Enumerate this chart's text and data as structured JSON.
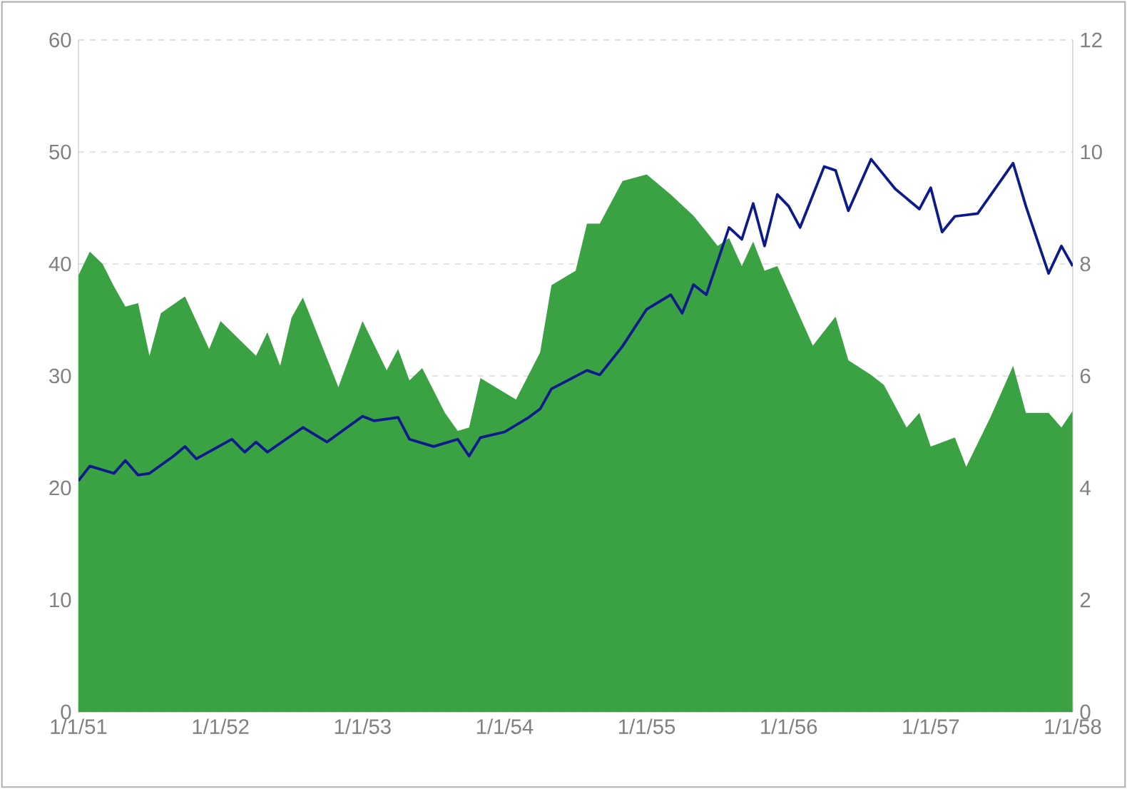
{
  "chart_data": {
    "type": "area",
    "xlim": [
      "1951-01-01",
      "1958-01-01"
    ],
    "xticks": [
      {
        "value": "1951-01-01",
        "label": "1/1/51"
      },
      {
        "value": "1952-01-01",
        "label": "1/1/52"
      },
      {
        "value": "1953-01-01",
        "label": "1/1/53"
      },
      {
        "value": "1954-01-01",
        "label": "1/1/54"
      },
      {
        "value": "1955-01-01",
        "label": "1/1/55"
      },
      {
        "value": "1956-01-01",
        "label": "1/1/56"
      },
      {
        "value": "1957-01-01",
        "label": "1/1/57"
      },
      {
        "value": "1958-01-01",
        "label": "1/1/58"
      }
    ],
    "ylim": [
      0,
      60
    ],
    "yticks": [
      0,
      10,
      20,
      30,
      40,
      50,
      60
    ],
    "y2lim": [
      0,
      12
    ],
    "y2ticks": [
      0,
      2,
      4,
      6,
      8,
      10,
      12
    ],
    "grid": "y",
    "series": [
      {
        "color": "#3ba244",
        "x": [
          "1951-01",
          "1951-02",
          "1951-03",
          "1951-04",
          "1951-05",
          "1951-06",
          "1951-07",
          "1951-08",
          "1951-10",
          "1951-12",
          "1952-01",
          "1952-04",
          "1952-05",
          "1952-06",
          "1952-07",
          "1952-08",
          "1952-11",
          "1953-01",
          "1953-03",
          "1953-04",
          "1953-05",
          "1953-06",
          "1953-08",
          "1953-09",
          "1953-10",
          "1953-11",
          "1954-02",
          "1954-04",
          "1954-05",
          "1954-07",
          "1954-08",
          "1954-09",
          "1954-11",
          "1955-01",
          "1955-03",
          "1955-05",
          "1955-06",
          "1955-07",
          "1955-08",
          "1955-09",
          "1955-10",
          "1955-11",
          "1955-12",
          "1956-03",
          "1956-05",
          "1956-06",
          "1956-08",
          "1956-09",
          "1956-11",
          "1956-12",
          "1957-01",
          "1957-03",
          "1957-04",
          "1957-06",
          "1957-08",
          "1957-09",
          "1957-11",
          "1957-12",
          "1958-01"
        ],
        "values": [
          39.0,
          41.1,
          40.0,
          38.0,
          36.2,
          36.5,
          31.8,
          35.6,
          37.1,
          32.4,
          34.9,
          31.8,
          33.9,
          30.9,
          35.2,
          37.0,
          29.0,
          34.9,
          30.5,
          32.4,
          29.6,
          30.7,
          26.7,
          25.1,
          25.4,
          29.8,
          27.9,
          32.1,
          38.1,
          39.4,
          43.6,
          43.6,
          47.4,
          48.0,
          46.2,
          44.3,
          42.9,
          41.6,
          42.3,
          39.8,
          42.0,
          39.4,
          39.8,
          32.7,
          35.3,
          31.4,
          30.1,
          29.2,
          25.4,
          26.7,
          23.7,
          24.5,
          21.9,
          26.3,
          30.9,
          26.7,
          26.7,
          25.4,
          26.9
        ]
      },
      {
        "type": "line",
        "axis": "y2",
        "color": "#0d1a8c",
        "x": [
          "1951-01",
          "1951-02",
          "1951-04",
          "1951-05",
          "1951-06",
          "1951-07",
          "1951-09",
          "1951-10",
          "1951-11",
          "1952-02",
          "1952-03",
          "1952-04",
          "1952-05",
          "1952-08",
          "1952-10",
          "1953-01",
          "1953-02",
          "1953-04",
          "1953-05",
          "1953-07",
          "1953-09",
          "1953-10",
          "1953-11",
          "1954-01",
          "1954-03",
          "1954-04",
          "1954-05",
          "1954-08",
          "1954-09",
          "1954-11",
          "1955-01",
          "1955-03",
          "1955-04",
          "1955-05",
          "1955-06",
          "1955-08",
          "1955-09",
          "1955-10",
          "1955-11",
          "1955-12",
          "1956-01",
          "1956-02",
          "1956-04",
          "1956-05",
          "1956-06",
          "1956-08",
          "1956-10",
          "1956-12",
          "1957-01",
          "1957-02",
          "1957-03",
          "1957-05",
          "1957-08",
          "1957-09",
          "1957-11",
          "1957-12",
          "1958-01"
        ],
        "values": [
          4.13,
          4.39,
          4.26,
          4.49,
          4.23,
          4.26,
          4.57,
          4.74,
          4.52,
          4.87,
          4.64,
          4.82,
          4.64,
          5.08,
          4.82,
          5.28,
          5.2,
          5.26,
          4.87,
          4.74,
          4.87,
          4.57,
          4.9,
          5.0,
          5.26,
          5.41,
          5.77,
          6.1,
          6.02,
          6.53,
          7.19,
          7.45,
          7.12,
          7.63,
          7.45,
          8.65,
          8.44,
          9.08,
          8.32,
          9.24,
          9.03,
          8.65,
          9.74,
          9.67,
          8.95,
          9.87,
          9.34,
          8.98,
          9.36,
          8.57,
          8.85,
          8.9,
          9.8,
          9.03,
          7.83,
          8.32,
          7.96
        ]
      }
    ]
  }
}
